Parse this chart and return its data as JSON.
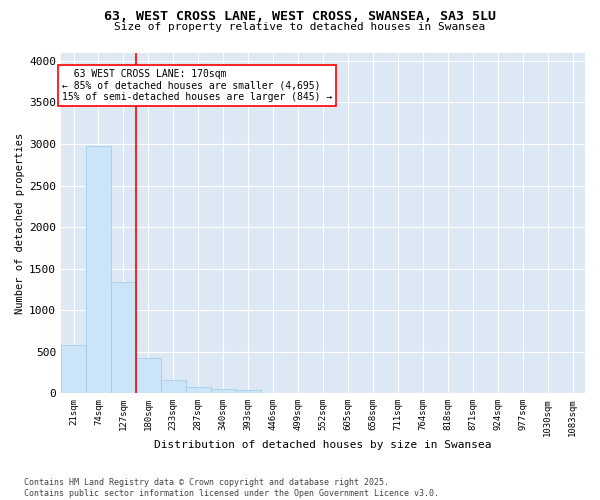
{
  "title_line1": "63, WEST CROSS LANE, WEST CROSS, SWANSEA, SA3 5LU",
  "title_line2": "Size of property relative to detached houses in Swansea",
  "xlabel": "Distribution of detached houses by size in Swansea",
  "ylabel": "Number of detached properties",
  "footer_line1": "Contains HM Land Registry data © Crown copyright and database right 2025.",
  "footer_line2": "Contains public sector information licensed under the Open Government Licence v3.0.",
  "annotation_line1": "  63 WEST CROSS LANE: 170sqm  ",
  "annotation_line2": "← 85% of detached houses are smaller (4,695)",
  "annotation_line3": "15% of semi-detached houses are larger (845) →",
  "bar_color": "#cce4f7",
  "bar_edge_color": "#9cc8e8",
  "bg_color": "#dde8f5",
  "grid_color": "#ffffff",
  "fig_bg_color": "#ffffff",
  "categories": [
    "21sqm",
    "74sqm",
    "127sqm",
    "180sqm",
    "233sqm",
    "287sqm",
    "340sqm",
    "393sqm",
    "446sqm",
    "499sqm",
    "552sqm",
    "605sqm",
    "658sqm",
    "711sqm",
    "764sqm",
    "818sqm",
    "871sqm",
    "924sqm",
    "977sqm",
    "1030sqm",
    "1083sqm"
  ],
  "values": [
    580,
    2970,
    1340,
    430,
    155,
    75,
    50,
    40,
    0,
    0,
    0,
    0,
    0,
    0,
    0,
    0,
    0,
    0,
    0,
    0,
    0
  ],
  "redline_idx": 3,
  "ylim": [
    0,
    4100
  ],
  "yticks": [
    0,
    500,
    1000,
    1500,
    2000,
    2500,
    3000,
    3500,
    4000
  ],
  "n_bars": 21
}
